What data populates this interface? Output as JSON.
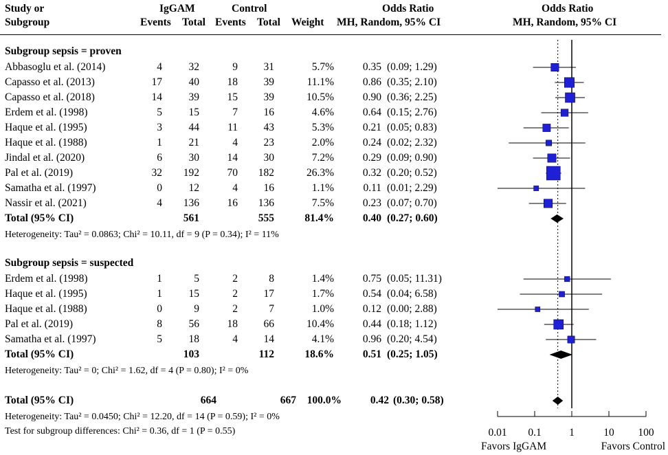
{
  "header": {
    "study_l1": "Study or",
    "study_l2": "Subgroup",
    "group1": "IgGAM",
    "group2": "Control",
    "events": "Events",
    "total": "Total",
    "weight": "Weight",
    "or_title": "Odds Ratio",
    "or_method": "MH, Random, 95% CI",
    "plot_title": "Odds Ratio",
    "plot_method": "MH, Random, 95% CI"
  },
  "subgroups": [
    {
      "title": "Subgroup sepsis = proven",
      "studies": [
        {
          "name": "Abbasoglu et al. (2014)",
          "e1": "4",
          "t1": "32",
          "e2": "9",
          "t2": "31",
          "weight": "5.7%",
          "or": "0.35",
          "ci": "(0.09; 1.29)"
        },
        {
          "name": "Capasso et al. (2013)",
          "e1": "17",
          "t1": "40",
          "e2": "18",
          "t2": "39",
          "weight": "11.1%",
          "or": "0.86",
          "ci": "(0.35; 2.10)"
        },
        {
          "name": "Capasso et al. (2018)",
          "e1": "14",
          "t1": "39",
          "e2": "15",
          "t2": "39",
          "weight": "10.5%",
          "or": "0.90",
          "ci": "(0.36; 2.25)"
        },
        {
          "name": "Erdem et al. (1998)",
          "e1": "5",
          "t1": "15",
          "e2": "7",
          "t2": "16",
          "weight": "4.6%",
          "or": "0.64",
          "ci": "(0.15; 2.76)"
        },
        {
          "name": "Haque et al. (1995)",
          "e1": "3",
          "t1": "44",
          "e2": "11",
          "t2": "43",
          "weight": "5.3%",
          "or": "0.21",
          "ci": "(0.05; 0.83)"
        },
        {
          "name": "Haque et al. (1988)",
          "e1": "1",
          "t1": "21",
          "e2": "4",
          "t2": "23",
          "weight": "2.0%",
          "or": "0.24",
          "ci": "(0.02; 2.32)"
        },
        {
          "name": "Jindal et al. (2020)",
          "e1": "6",
          "t1": "30",
          "e2": "14",
          "t2": "30",
          "weight": "7.2%",
          "or": "0.29",
          "ci": "(0.09; 0.90)"
        },
        {
          "name": "Pal et al. (2019)",
          "e1": "32",
          "t1": "192",
          "e2": "70",
          "t2": "182",
          "weight": "26.3%",
          "or": "0.32",
          "ci": "(0.20; 0.52)"
        },
        {
          "name": "Samatha et al. (1997)",
          "e1": "0",
          "t1": "12",
          "e2": "4",
          "t2": "16",
          "weight": "1.1%",
          "or": "0.11",
          "ci": "(0.01; 2.29)"
        },
        {
          "name": "Nassir et al. (2021)",
          "e1": "4",
          "t1": "136",
          "e2": "16",
          "t2": "136",
          "weight": "7.5%",
          "or": "0.23",
          "ci": "(0.07; 0.70)"
        }
      ],
      "total": {
        "label": "Total (95% CI)",
        "t1": "561",
        "t2": "555",
        "weight": "81.4%",
        "or": "0.40",
        "ci": "(0.27; 0.60)"
      },
      "heterogeneity": "Heterogeneity: Tau² = 0.0863; Chi² = 10.11, df = 9 (P = 0.34); I² = 11%"
    },
    {
      "title": "Subgroup sepsis = suspected",
      "studies": [
        {
          "name": "Erdem et al. (1998)",
          "e1": "1",
          "t1": "5",
          "e2": "2",
          "t2": "8",
          "weight": "1.4%",
          "or": "0.75",
          "ci": "(0.05; 11.31)"
        },
        {
          "name": "Haque et al. (1995)",
          "e1": "1",
          "t1": "15",
          "e2": "2",
          "t2": "17",
          "weight": "1.7%",
          "or": "0.54",
          "ci": "(0.04; 6.58)"
        },
        {
          "name": "Haque et al. (1988)",
          "e1": "0",
          "t1": "9",
          "e2": "2",
          "t2": "7",
          "weight": "1.0%",
          "or": "0.12",
          "ci": "(0.00; 2.88)"
        },
        {
          "name": "Pal et al. (2019)",
          "e1": "8",
          "t1": "56",
          "e2": "18",
          "t2": "66",
          "weight": "10.4%",
          "or": "0.44",
          "ci": "(0.18; 1.12)"
        },
        {
          "name": "Samatha et al. (1997)",
          "e1": "5",
          "t1": "18",
          "e2": "4",
          "t2": "14",
          "weight": "4.1%",
          "or": "0.96",
          "ci": "(0.20; 4.54)"
        }
      ],
      "total": {
        "label": "Total (95% CI)",
        "t1": "103",
        "t2": "112",
        "weight": "18.6%",
        "or": "0.51",
        "ci": "(0.25; 1.05)"
      },
      "heterogeneity": "Heterogeneity: Tau² = 0; Chi² = 1.62, df = 4 (P = 0.80); I² = 0%"
    }
  ],
  "overall": {
    "label": "Total (95% CI)",
    "t1": "664",
    "t2": "667",
    "weight": "100.0%",
    "or": "0.42",
    "ci": "(0.30;  0.58)",
    "heterogeneity": "Heterogeneity: Tau² = 0.0450; Chi² = 12.20, df = 14 (P = 0.59); I² = 0%",
    "subgroup_test": "Test for subgroup differences: Chi² = 0.36, df = 1 (P = 0.55)"
  },
  "chart_data": {
    "type": "forest",
    "scale": "log",
    "axis_ticks": [
      0.01,
      0.1,
      1,
      10,
      100
    ],
    "axis_tick_labels": [
      "0.01",
      "0.1",
      "1",
      "10",
      "100"
    ],
    "xlim": [
      0.01,
      100
    ],
    "null_value": 1,
    "pooled_reference": 0.42,
    "favors_left": "Favors IgGAM",
    "favors_right": "Favors Control",
    "studies": [
      {
        "or": 0.35,
        "lo": 0.09,
        "hi": 1.29,
        "w": 5.7
      },
      {
        "or": 0.86,
        "lo": 0.35,
        "hi": 2.1,
        "w": 11.1
      },
      {
        "or": 0.9,
        "lo": 0.36,
        "hi": 2.25,
        "w": 10.5
      },
      {
        "or": 0.64,
        "lo": 0.15,
        "hi": 2.76,
        "w": 4.6
      },
      {
        "or": 0.21,
        "lo": 0.05,
        "hi": 0.83,
        "w": 5.3
      },
      {
        "or": 0.24,
        "lo": 0.02,
        "hi": 2.32,
        "w": 2.0
      },
      {
        "or": 0.29,
        "lo": 0.09,
        "hi": 0.9,
        "w": 7.2
      },
      {
        "or": 0.32,
        "lo": 0.2,
        "hi": 0.52,
        "w": 26.3
      },
      {
        "or": 0.11,
        "lo": 0.01,
        "hi": 2.29,
        "w": 1.1
      },
      {
        "or": 0.23,
        "lo": 0.07,
        "hi": 0.7,
        "w": 7.5
      },
      {
        "or": 0.75,
        "lo": 0.05,
        "hi": 11.31,
        "w": 1.4
      },
      {
        "or": 0.54,
        "lo": 0.04,
        "hi": 6.58,
        "w": 1.7
      },
      {
        "or": 0.12,
        "lo": 0.0,
        "hi": 2.88,
        "w": 1.0
      },
      {
        "or": 0.44,
        "lo": 0.18,
        "hi": 1.12,
        "w": 10.4
      },
      {
        "or": 0.96,
        "lo": 0.2,
        "hi": 4.54,
        "w": 4.1
      }
    ],
    "diamonds": [
      {
        "or": 0.4,
        "lo": 0.27,
        "hi": 0.6
      },
      {
        "or": 0.51,
        "lo": 0.25,
        "hi": 1.05
      },
      {
        "or": 0.42,
        "lo": 0.3,
        "hi": 0.58
      }
    ],
    "colors": {
      "box": "#1f1fd6",
      "line": "#000000"
    }
  }
}
